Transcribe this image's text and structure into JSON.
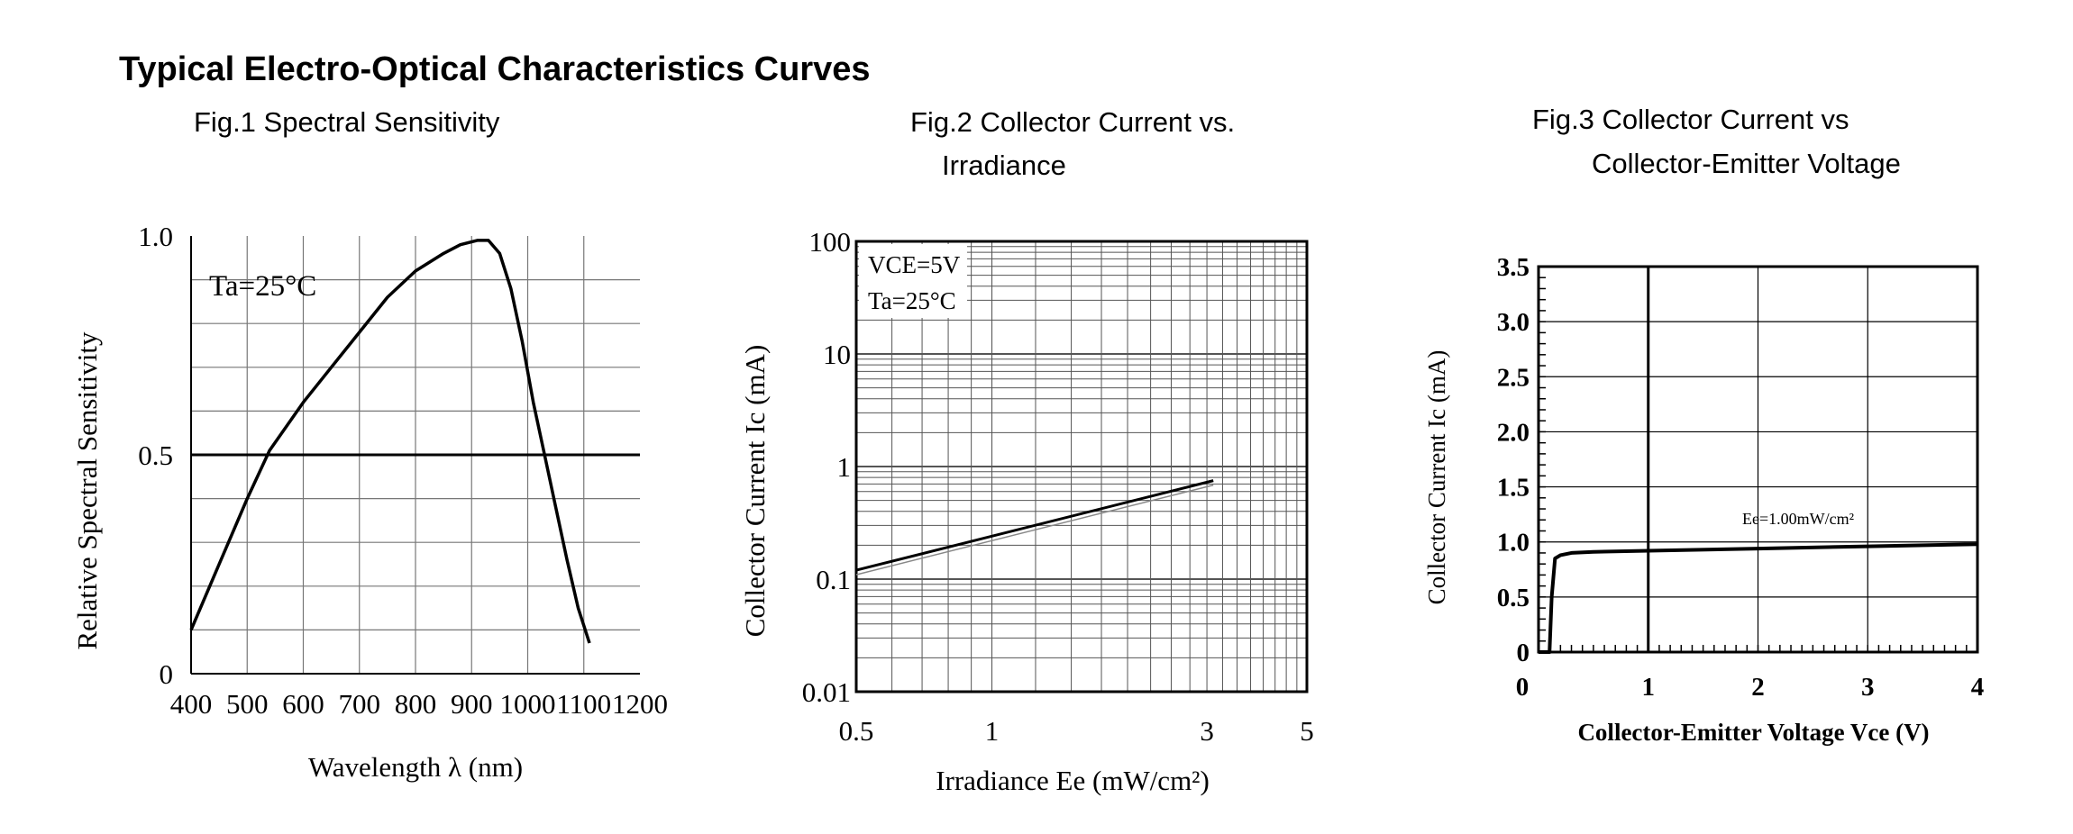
{
  "page": {
    "title": "Typical Electro-Optical Characteristics Curves"
  },
  "figures": [
    {
      "title_lines": [
        "Fig.1 Spectral Sensitivity"
      ]
    },
    {
      "title_lines": [
        "Fig.2 Collector Current vs.",
        "Irradiance"
      ]
    },
    {
      "title_lines": [
        "Fig.3 Collector Current vs",
        "Collector-Emitter Voltage"
      ]
    }
  ],
  "chart_data": [
    {
      "type": "line",
      "title": "Fig.1 Spectral Sensitivity",
      "xlabel": "Wavelength  λ  (nm)",
      "ylabel": "Relative Spectral Sensitivity",
      "xlim": [
        400,
        1200
      ],
      "ylim": [
        0,
        1.0
      ],
      "x_ticks": [
        400,
        500,
        600,
        700,
        800,
        900,
        1000,
        1100,
        1200
      ],
      "x_tick_labels": [
        "400",
        "500",
        "600",
        "700",
        "800",
        "900",
        "1000",
        "1100",
        "1200"
      ],
      "y_ticks": [
        0,
        0.5,
        1.0
      ],
      "y_tick_labels": [
        "0",
        "0.5",
        "1.0"
      ],
      "annotation": "Ta=25°C",
      "grid": true,
      "reference_line": 0.5,
      "series": [
        {
          "x": [
            400,
            450,
            500,
            540,
            600,
            650,
            700,
            750,
            800,
            850,
            880,
            910,
            930,
            950,
            970,
            990,
            1010,
            1030,
            1050,
            1070,
            1090,
            1110
          ],
          "y": [
            0.1,
            0.25,
            0.4,
            0.51,
            0.62,
            0.7,
            0.78,
            0.86,
            0.92,
            0.96,
            0.98,
            0.99,
            0.99,
            0.96,
            0.88,
            0.76,
            0.62,
            0.5,
            0.38,
            0.26,
            0.15,
            0.07
          ]
        }
      ]
    },
    {
      "type": "line",
      "title": "Fig.2 Collector Current vs. Irradiance",
      "xlabel": "Irradiance Ee (mW/cm²)",
      "ylabel": "Collector Current Ic (mA)",
      "xscale": "log",
      "yscale": "log",
      "xlim": [
        0.5,
        5
      ],
      "ylim": [
        0.01,
        100
      ],
      "x_ticks": [
        0.5,
        1,
        3,
        5
      ],
      "x_tick_labels": [
        "0.5",
        "1",
        "3",
        "5"
      ],
      "y_ticks": [
        0.01,
        0.1,
        1,
        10,
        100
      ],
      "y_tick_labels": [
        "0.01",
        "0.1",
        "1",
        "10",
        "100"
      ],
      "annotation_lines": [
        "VCE=5V",
        "Ta=25°C"
      ],
      "grid": true,
      "series": [
        {
          "x": [
            0.5,
            3.1
          ],
          "y": [
            0.12,
            0.75
          ]
        }
      ]
    },
    {
      "type": "line",
      "title": "Fig.3 Collector Current vs Collector-Emitter Voltage",
      "xlabel": "Collector-Emitter Voltage Vce (V)",
      "ylabel": "Collector Current Ic (mA)",
      "xlim": [
        0,
        4
      ],
      "ylim": [
        0,
        3.5
      ],
      "x_ticks": [
        0,
        1,
        2,
        3,
        4
      ],
      "x_tick_labels": [
        "0",
        "1",
        "2",
        "3",
        "4"
      ],
      "y_ticks": [
        0,
        0.5,
        1.0,
        1.5,
        2.0,
        2.5,
        3.0,
        3.5
      ],
      "y_tick_labels": [
        "0",
        "0.5",
        "1.0",
        "1.5",
        "2.0",
        "2.5",
        "3.0",
        "3.5"
      ],
      "grid": true,
      "series": [
        {
          "name": "Ee=1.00mW/cm²",
          "x": [
            0.0,
            0.1,
            0.12,
            0.15,
            0.2,
            0.3,
            0.5,
            1.0,
            2.0,
            3.0,
            4.0
          ],
          "y": [
            0.0,
            0.0,
            0.5,
            0.85,
            0.88,
            0.9,
            0.91,
            0.92,
            0.94,
            0.96,
            0.98
          ]
        }
      ]
    }
  ]
}
